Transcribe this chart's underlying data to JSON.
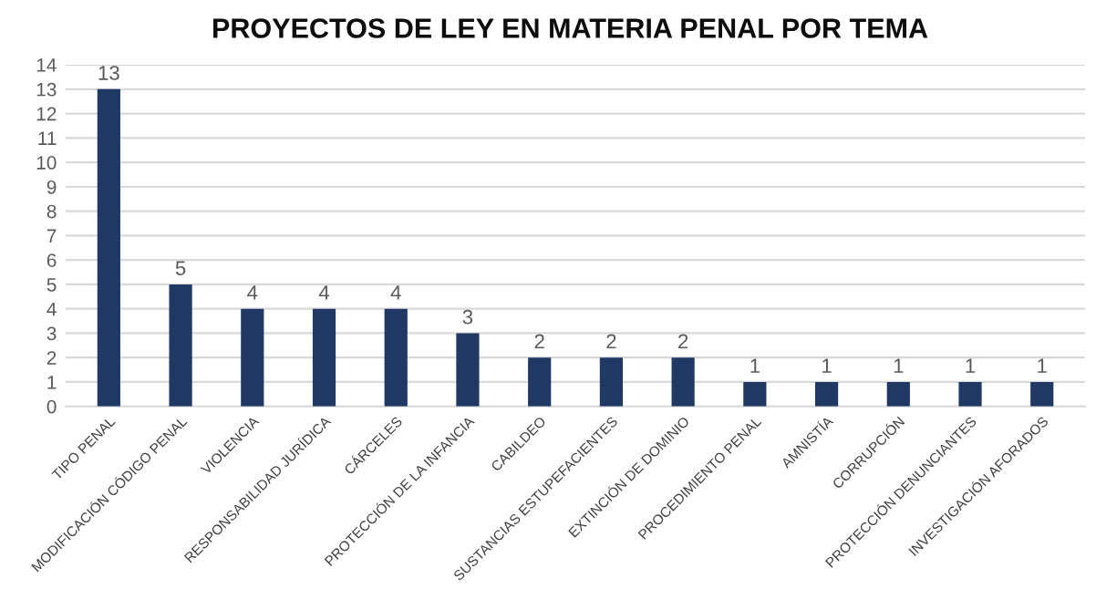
{
  "chart_data": {
    "type": "bar",
    "title": "PROYECTOS DE LEY EN MATERIA PENAL POR TEMA",
    "categories": [
      "TIPO PENAL",
      "MODIFICACIÓN CÓDIGO PENAL",
      "VIOLENCIA",
      "RESPONSABILIDAD JURÍDICA",
      "CÁRCELES",
      "PROTECCIÓN DE LA INFANCIA",
      "CABILDEO",
      "SUSTANCIAS ESTUPEFACIENTES",
      "EXTINCIÓN DE DOMINIO",
      "PROCEDIMIENTO PENAL",
      "AMNISTÍA",
      "CORRUPCIÓN",
      "PROTECCIÓN DENUNCIANTES",
      "INVESTIGACIÓN AFORADOS"
    ],
    "values": [
      13,
      5,
      4,
      4,
      4,
      3,
      2,
      2,
      2,
      1,
      1,
      1,
      1,
      1
    ],
    "color": "#1f3864",
    "ylim": [
      0,
      14
    ],
    "yticks": [
      0,
      1,
      2,
      3,
      4,
      5,
      6,
      7,
      8,
      9,
      10,
      11,
      12,
      13,
      14
    ],
    "grid": "y",
    "data_labels": true
  }
}
